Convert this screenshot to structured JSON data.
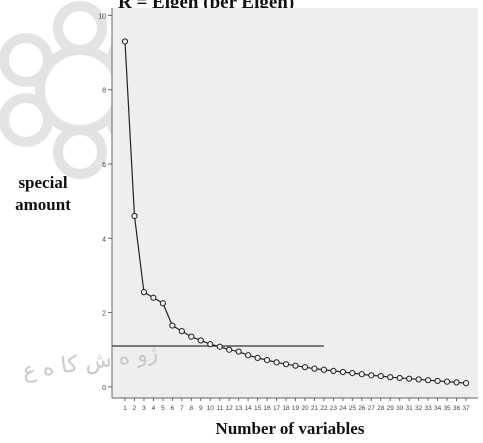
{
  "page": {
    "top_title": "R = Eigen (per Eigen)",
    "watermark_text": "ژو ه ش کا ه ع"
  },
  "chart_data": {
    "type": "line",
    "title": "",
    "xlabel": "Number of variables",
    "ylabel": "special amount",
    "x": [
      1,
      2,
      3,
      4,
      5,
      6,
      7,
      8,
      9,
      10,
      11,
      12,
      13,
      14,
      15,
      16,
      17,
      18,
      19,
      20,
      21,
      22,
      23,
      24,
      25,
      26,
      27,
      28,
      29,
      30,
      31,
      32,
      33,
      34,
      35,
      36,
      37
    ],
    "values": [
      9.3,
      4.6,
      2.55,
      2.4,
      2.25,
      1.65,
      1.5,
      1.35,
      1.25,
      1.15,
      1.08,
      1.0,
      0.95,
      0.85,
      0.78,
      0.72,
      0.66,
      0.61,
      0.57,
      0.53,
      0.49,
      0.46,
      0.43,
      0.4,
      0.37,
      0.34,
      0.31,
      0.29,
      0.26,
      0.24,
      0.22,
      0.2,
      0.18,
      0.16,
      0.14,
      0.12,
      0.1
    ],
    "ylim": [
      -0.3,
      10.2
    ],
    "yticks": [
      0,
      2,
      4,
      6,
      8,
      10
    ],
    "reference_line": {
      "value": 1.1,
      "from_x": 1,
      "to_x": 22
    },
    "grid": false,
    "legend": "none",
    "colors": {
      "plot_bg": "#eeeeee",
      "line": "#222222",
      "marker": "#222222",
      "reference": "#333333"
    }
  }
}
